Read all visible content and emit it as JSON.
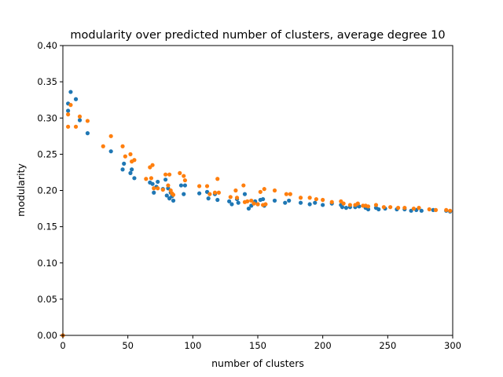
{
  "chart_data": {
    "type": "scatter",
    "title": "modularity over predicted number of clusters, average degree 10",
    "xlabel": "number of clusters",
    "ylabel": "modularity",
    "xlim": [
      0,
      300
    ],
    "ylim": [
      0,
      0.4
    ],
    "xticks": [
      "0",
      "50",
      "100",
      "150",
      "200",
      "250",
      "300"
    ],
    "yticks": [
      "0.00",
      "0.05",
      "0.10",
      "0.15",
      "0.20",
      "0.25",
      "0.30",
      "0.35",
      "0.40"
    ],
    "grid": false,
    "legend": "none",
    "series": [
      {
        "color": "#1f77b4",
        "points": [
          [
            4,
            0.32
          ],
          [
            4,
            0.31
          ],
          [
            6,
            0.336
          ],
          [
            10,
            0.326
          ],
          [
            13,
            0.297
          ],
          [
            19,
            0.279
          ],
          [
            37,
            0.254
          ],
          [
            46,
            0.229
          ],
          [
            47,
            0.237
          ],
          [
            52,
            0.224
          ],
          [
            53,
            0.229
          ],
          [
            55,
            0.217
          ],
          [
            67,
            0.211
          ],
          [
            69,
            0.209
          ],
          [
            70,
            0.197
          ],
          [
            72,
            0.205
          ],
          [
            73,
            0.212
          ],
          [
            77,
            0.202
          ],
          [
            79,
            0.215
          ],
          [
            80,
            0.193
          ],
          [
            81,
            0.203
          ],
          [
            82,
            0.189
          ],
          [
            83,
            0.197
          ],
          [
            84,
            0.192
          ],
          [
            85,
            0.186
          ],
          [
            91,
            0.207
          ],
          [
            93,
            0.195
          ],
          [
            94,
            0.207
          ],
          [
            105,
            0.196
          ],
          [
            111,
            0.198
          ],
          [
            112,
            0.189
          ],
          [
            117,
            0.195
          ],
          [
            119,
            0.187
          ],
          [
            128,
            0.185
          ],
          [
            130,
            0.181
          ],
          [
            134,
            0.188
          ],
          [
            135,
            0.183
          ],
          [
            140,
            0.195
          ],
          [
            143,
            0.175
          ],
          [
            145,
            0.179
          ],
          [
            148,
            0.185
          ],
          [
            150,
            0.181
          ],
          [
            152,
            0.187
          ],
          [
            154,
            0.188
          ],
          [
            155,
            0.179
          ],
          [
            163,
            0.186
          ],
          [
            171,
            0.183
          ],
          [
            174,
            0.186
          ],
          [
            183,
            0.183
          ],
          [
            190,
            0.181
          ],
          [
            194,
            0.183
          ],
          [
            200,
            0.18
          ],
          [
            207,
            0.182
          ],
          [
            214,
            0.18
          ],
          [
            215,
            0.177
          ],
          [
            218,
            0.176
          ],
          [
            221,
            0.177
          ],
          [
            225,
            0.177
          ],
          [
            228,
            0.178
          ],
          [
            233,
            0.176
          ],
          [
            235,
            0.174
          ],
          [
            241,
            0.176
          ],
          [
            243,
            0.174
          ],
          [
            248,
            0.175
          ],
          [
            257,
            0.174
          ],
          [
            263,
            0.174
          ],
          [
            268,
            0.172
          ],
          [
            272,
            0.173
          ],
          [
            276,
            0.172
          ],
          [
            285,
            0.173
          ],
          [
            295,
            0.172
          ],
          [
            298,
            0.171
          ]
        ]
      },
      {
        "color": "#ff7f0e",
        "points": [
          [
            0,
            0.0
          ],
          [
            4,
            0.288
          ],
          [
            4,
            0.305
          ],
          [
            6,
            0.318
          ],
          [
            10,
            0.288
          ],
          [
            13,
            0.302
          ],
          [
            19,
            0.296
          ],
          [
            31,
            0.261
          ],
          [
            37,
            0.275
          ],
          [
            46,
            0.261
          ],
          [
            48,
            0.247
          ],
          [
            52,
            0.25
          ],
          [
            53,
            0.24
          ],
          [
            55,
            0.242
          ],
          [
            64,
            0.216
          ],
          [
            67,
            0.232
          ],
          [
            68,
            0.217
          ],
          [
            69,
            0.235
          ],
          [
            70,
            0.203
          ],
          [
            73,
            0.203
          ],
          [
            77,
            0.201
          ],
          [
            79,
            0.222
          ],
          [
            81,
            0.207
          ],
          [
            82,
            0.222
          ],
          [
            83,
            0.2
          ],
          [
            84,
            0.196
          ],
          [
            85,
            0.194
          ],
          [
            90,
            0.224
          ],
          [
            93,
            0.22
          ],
          [
            94,
            0.214
          ],
          [
            105,
            0.206
          ],
          [
            111,
            0.206
          ],
          [
            113,
            0.195
          ],
          [
            117,
            0.197
          ],
          [
            119,
            0.216
          ],
          [
            120,
            0.197
          ],
          [
            129,
            0.191
          ],
          [
            133,
            0.2
          ],
          [
            134,
            0.19
          ],
          [
            139,
            0.207
          ],
          [
            140,
            0.184
          ],
          [
            142,
            0.185
          ],
          [
            145,
            0.186
          ],
          [
            147,
            0.182
          ],
          [
            150,
            0.181
          ],
          [
            152,
            0.198
          ],
          [
            154,
            0.18
          ],
          [
            155,
            0.202
          ],
          [
            156,
            0.181
          ],
          [
            163,
            0.2
          ],
          [
            172,
            0.195
          ],
          [
            175,
            0.195
          ],
          [
            183,
            0.19
          ],
          [
            190,
            0.19
          ],
          [
            195,
            0.188
          ],
          [
            200,
            0.187
          ],
          [
            207,
            0.184
          ],
          [
            214,
            0.185
          ],
          [
            216,
            0.182
          ],
          [
            221,
            0.18
          ],
          [
            225,
            0.18
          ],
          [
            227,
            0.182
          ],
          [
            231,
            0.179
          ],
          [
            233,
            0.179
          ],
          [
            235,
            0.178
          ],
          [
            241,
            0.18
          ],
          [
            247,
            0.177
          ],
          [
            252,
            0.177
          ],
          [
            258,
            0.176
          ],
          [
            263,
            0.176
          ],
          [
            270,
            0.175
          ],
          [
            274,
            0.176
          ],
          [
            282,
            0.174
          ],
          [
            287,
            0.173
          ],
          [
            295,
            0.173
          ],
          [
            298,
            0.172
          ]
        ]
      }
    ]
  }
}
